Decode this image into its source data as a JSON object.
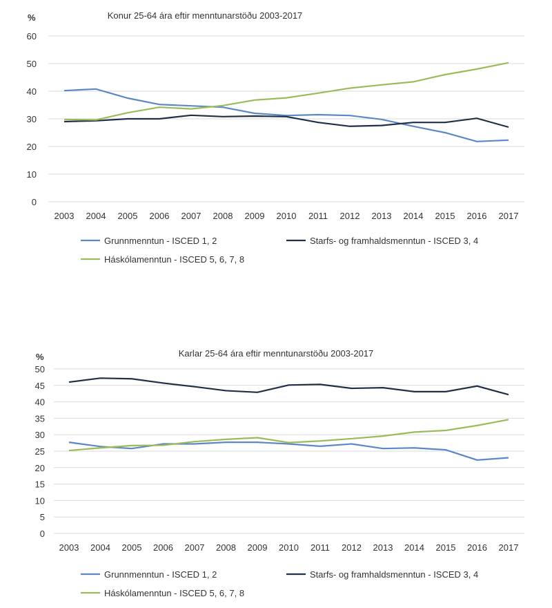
{
  "colors": {
    "grunn": "#5b87c5",
    "starfs": "#1f2f45",
    "haskola": "#9bbb59",
    "grid": "#d9d9d9"
  },
  "chart_data": [
    {
      "type": "line",
      "title": "Konur 25-64 ára eftir menntunarstöðu 2003-2017",
      "ylabel": "%",
      "ylim": [
        0,
        60
      ],
      "yticks": [
        "0",
        "10",
        "20",
        "30",
        "40",
        "50",
        "60"
      ],
      "grid": true,
      "legend": "bottom",
      "categories": [
        "2003",
        "2004",
        "2005",
        "2006",
        "2007",
        "2008",
        "2009",
        "2010",
        "2011",
        "2012",
        "2013",
        "2014",
        "2015",
        "2016",
        "2017"
      ],
      "series": [
        {
          "key": "grunn",
          "name": "Grunnmenntun - ISCED 1, 2",
          "values": [
            40.2,
            40.8,
            37.5,
            35.2,
            34.7,
            34.2,
            32.0,
            31.2,
            31.5,
            31.2,
            29.8,
            27.3,
            25.0,
            21.8,
            22.3
          ]
        },
        {
          "key": "starfs",
          "name": "Starfs- og framhaldsmenntun - ISCED 3, 4",
          "values": [
            29.0,
            29.3,
            30.0,
            30.0,
            31.3,
            30.8,
            31.0,
            30.8,
            28.7,
            27.3,
            27.6,
            28.7,
            28.7,
            30.2,
            27.0
          ]
        },
        {
          "key": "haskola",
          "name": "Háskólamenntun - ISCED 5, 6, 7, 8",
          "values": [
            29.8,
            29.6,
            32.2,
            34.2,
            33.6,
            34.8,
            36.8,
            37.6,
            39.3,
            41.1,
            42.3,
            43.4,
            46.0,
            48.0,
            50.3
          ]
        }
      ]
    },
    {
      "type": "line",
      "title": "Karlar 25-64 ára eftir menntunarstöðu 2003-2017",
      "ylabel": "%",
      "ylim": [
        0,
        50
      ],
      "yticks": [
        "0",
        "5",
        "10",
        "15",
        "20",
        "25",
        "30",
        "35",
        "40",
        "45",
        "50"
      ],
      "grid": true,
      "legend": "bottom",
      "categories": [
        "2003",
        "2004",
        "2005",
        "2006",
        "2007",
        "2008",
        "2009",
        "2010",
        "2011",
        "2012",
        "2013",
        "2014",
        "2015",
        "2016",
        "2017"
      ],
      "series": [
        {
          "key": "grunn",
          "name": "Grunnmenntun - ISCED 1, 2",
          "values": [
            27.7,
            26.4,
            25.8,
            27.2,
            27.2,
            27.7,
            27.7,
            27.2,
            26.5,
            27.2,
            25.8,
            26.0,
            25.4,
            22.3,
            23.0
          ]
        },
        {
          "key": "starfs",
          "name": "Starfs- og framhaldsmenntun - ISCED 3, 4",
          "values": [
            46.0,
            47.2,
            47.0,
            45.7,
            44.6,
            43.4,
            42.9,
            45.1,
            45.3,
            44.1,
            44.3,
            43.1,
            43.1,
            44.8,
            42.2
          ]
        },
        {
          "key": "haskola",
          "name": "Háskólamenntun - ISCED 5, 6, 7, 8",
          "values": [
            25.2,
            26.0,
            26.7,
            26.8,
            27.9,
            28.6,
            29.1,
            27.6,
            28.1,
            28.8,
            29.6,
            30.8,
            31.3,
            32.8,
            34.6
          ]
        }
      ]
    }
  ]
}
